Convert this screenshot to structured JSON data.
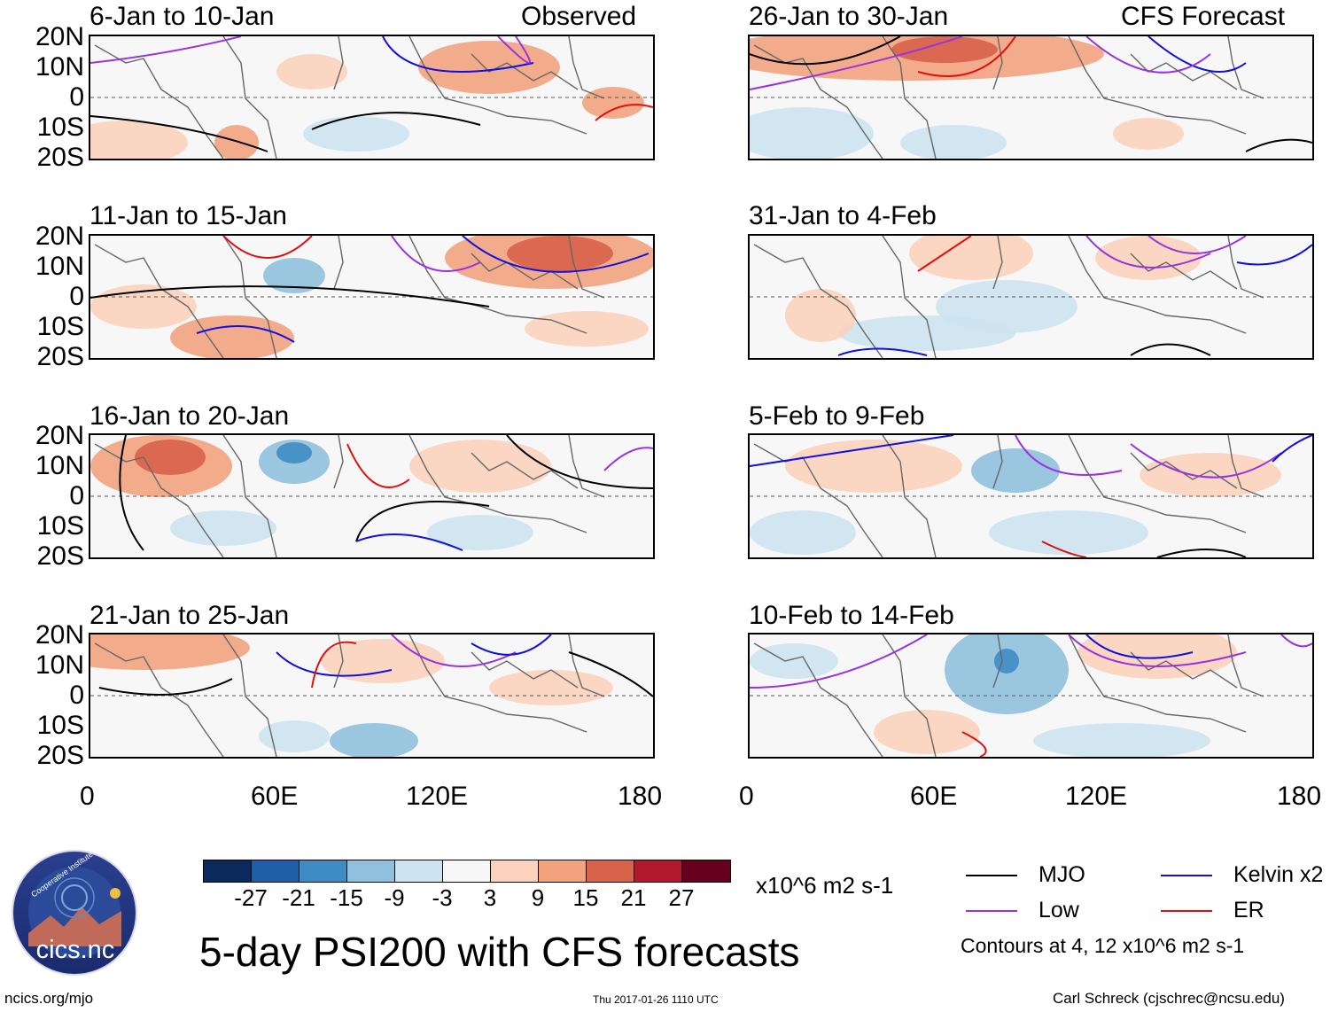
{
  "panels": [
    {
      "period": "6-Jan to 10-Jan",
      "tag": "Observed"
    },
    {
      "period": "11-Jan to 15-Jan",
      "tag": ""
    },
    {
      "period": "16-Jan to 20-Jan",
      "tag": ""
    },
    {
      "period": "21-Jan to 25-Jan",
      "tag": ""
    },
    {
      "period": "26-Jan to 30-Jan",
      "tag": "CFS Forecast"
    },
    {
      "period": "31-Jan to 4-Feb",
      "tag": ""
    },
    {
      "period": "5-Feb to 9-Feb",
      "tag": ""
    },
    {
      "period": "10-Feb to 14-Feb",
      "tag": ""
    }
  ],
  "lat_labels": [
    "20N",
    "10N",
    "0",
    "10S",
    "20S"
  ],
  "lon_labels": [
    "0",
    "60E",
    "120E",
    "180"
  ],
  "colorbar": {
    "colors": [
      "#0b2a5c",
      "#1f5ea8",
      "#3f8cc4",
      "#8fc0dd",
      "#cde3ef",
      "#f7f7f7",
      "#fbd2bb",
      "#f2a37e",
      "#d8624a",
      "#b2182b",
      "#67001f"
    ],
    "labels": [
      "-27",
      "-21",
      "-15",
      "-9",
      "-3",
      "3",
      "9",
      "15",
      "21",
      "27"
    ],
    "units": "x10^6 m2 s-1"
  },
  "legend": {
    "items": [
      {
        "label": "MJO",
        "color": "#000000"
      },
      {
        "label": "Kelvin x2",
        "color": "#1010e0"
      },
      {
        "label": "Low",
        "color": "#9933dd"
      },
      {
        "label": "ER",
        "color": "#e01010"
      }
    ],
    "contours_note": "Contours at 4, 12 x10^6 m2 s-1"
  },
  "title": "5-day PSI200 with CFS forecasts",
  "logo_text": "cics.nc",
  "logo_ring": "Cooperative Institute for Climate and Satellites",
  "footer": {
    "left": "ncics.org/mjo",
    "center": "Thu 2017-01-26 1110 UTC",
    "right": "Carl Schreck (cjschrec@ncsu.edu)"
  }
}
